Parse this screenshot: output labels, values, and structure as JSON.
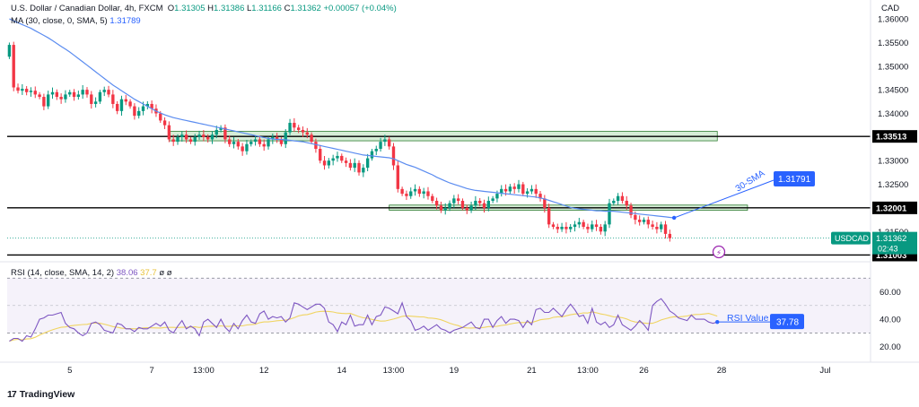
{
  "header": {
    "symbol_line": "U.S. Dollar / Canadian Dollar, 4h, FXCM",
    "open_label": "O",
    "open": "1.31305",
    "high_label": "H",
    "high": "1.31386",
    "low_label": "L",
    "low": "1.31166",
    "close_label": "C",
    "close": "1.31362",
    "change": "+0.00057 (+0.04%)",
    "ma_line": "MA (30, close, 0, SMA, 5)",
    "ma_value": "1.31789",
    "rsi_line": "RSI (14, close, SMA, 14, 2)",
    "rsi_value": "38.06",
    "rsi_ma_value": "37.7",
    "rsi_extra": "ø  ø"
  },
  "footer": {
    "brand": "TradingView",
    "logo": "17"
  },
  "colors": {
    "up": "#089981",
    "down": "#f23645",
    "ma": "#5b8cf0",
    "rsi": "#7e57c2",
    "rsi_ma": "#f0d460",
    "zone": "#a5d6a7"
  },
  "chart_data": {
    "type": "candlestick",
    "currency": "CAD",
    "symbol": "USDCAD",
    "ylim": [
      1.3086,
      1.364
    ],
    "price_ticks": [
      "1.36000",
      "1.35500",
      "1.35000",
      "1.34500",
      "1.34000",
      "1.33000",
      "1.32500",
      "1.31500"
    ],
    "x_ticks": [
      {
        "i": 14,
        "label": "5"
      },
      {
        "i": 33,
        "label": "7"
      },
      {
        "i": 45,
        "label": "13:00"
      },
      {
        "i": 59,
        "label": "12"
      },
      {
        "i": 77,
        "label": "14"
      },
      {
        "i": 89,
        "label": "13:00"
      },
      {
        "i": 103,
        "label": "19"
      },
      {
        "i": 121,
        "label": "21"
      },
      {
        "i": 134,
        "label": "13:00"
      },
      {
        "i": 147,
        "label": "26"
      },
      {
        "i": 165,
        "label": "28"
      },
      {
        "i": 189,
        "label": "Jul"
      }
    ],
    "n_slots": 200,
    "levels": [
      {
        "price": 1.33513,
        "label": "1.33513"
      },
      {
        "price": 1.32001,
        "label": "1.32001"
      },
      {
        "price": 1.31003,
        "label": "1.31003"
      }
    ],
    "zones": [
      {
        "from": 37,
        "to": 164,
        "low": 1.3342,
        "high": 1.3362
      },
      {
        "from": 88,
        "to": 171,
        "low": 1.3195,
        "high": 1.3206
      }
    ],
    "last_price": {
      "label": "USDCAD",
      "value": "1.31362",
      "countdown": "02:43"
    },
    "ma_badge": "1.31791",
    "ma_annotation": "30-SMA",
    "rsi_annotation": "RSI Value",
    "rsi_badge": "37.78",
    "rsi_ylim": [
      10,
      78
    ],
    "rsi_ticks": [
      "60.00",
      "40.00",
      "20.00"
    ],
    "rsi_bands": [
      70,
      30
    ],
    "closes": [
      1.3545,
      1.3455,
      1.3448,
      1.3452,
      1.3445,
      1.3448,
      1.344,
      1.3435,
      1.3415,
      1.344,
      1.3445,
      1.3435,
      1.343,
      1.344,
      1.3445,
      1.3435,
      1.344,
      1.345,
      1.344,
      1.342,
      1.3425,
      1.3445,
      1.345,
      1.344,
      1.342,
      1.3405,
      1.343,
      1.3425,
      1.3415,
      1.3395,
      1.3405,
      1.3415,
      1.342,
      1.341,
      1.34,
      1.3385,
      1.3375,
      1.3345,
      1.334,
      1.335,
      1.3355,
      1.3345,
      1.334,
      1.335,
      1.3355,
      1.335,
      1.3345,
      1.3355,
      1.3365,
      1.337,
      1.3345,
      1.3335,
      1.334,
      1.333,
      1.332,
      1.3335,
      1.334,
      1.3345,
      1.3335,
      1.333,
      1.3345,
      1.335,
      1.3345,
      1.3335,
      1.336,
      1.338,
      1.337,
      1.3365,
      1.336,
      1.3355,
      1.334,
      1.3325,
      1.33,
      1.329,
      1.33,
      1.3305,
      1.331,
      1.33,
      1.3295,
      1.3285,
      1.3295,
      1.3275,
      1.3285,
      1.3305,
      1.332,
      1.3325,
      1.334,
      1.3345,
      1.333,
      1.329,
      1.324,
      1.323,
      1.3225,
      1.3235,
      1.324,
      1.323,
      1.3235,
      1.3225,
      1.3215,
      1.3205,
      1.3195,
      1.32,
      1.321,
      1.322,
      1.3215,
      1.32,
      1.3195,
      1.3205,
      1.3215,
      1.321,
      1.32,
      1.3215,
      1.322,
      1.323,
      1.324,
      1.3235,
      1.3245,
      1.324,
      1.325,
      1.323,
      1.3235,
      1.324,
      1.323,
      1.322,
      1.32,
      1.3165,
      1.316,
      1.3155,
      1.316,
      1.3155,
      1.316,
      1.3165,
      1.317,
      1.316,
      1.3155,
      1.3165,
      1.316,
      1.315,
      1.3165,
      1.321,
      1.3215,
      1.3225,
      1.3215,
      1.3205,
      1.3185,
      1.3175,
      1.317,
      1.3175,
      1.3165,
      1.316,
      1.3155,
      1.3165,
      1.3145,
      1.3136
    ],
    "ma": [
      1.36,
      1.3596,
      1.3592,
      1.3588,
      1.3584,
      1.358,
      1.3575,
      1.357,
      1.3565,
      1.356,
      1.3554,
      1.3548,
      1.3542,
      1.3536,
      1.353,
      1.3523,
      1.3516,
      1.3509,
      1.3502,
      1.3495,
      1.3488,
      1.3481,
      1.3474,
      1.3467,
      1.346,
      1.3454,
      1.3448,
      1.3442,
      1.3436,
      1.343,
      1.3425,
      1.342,
      1.3415,
      1.341,
      1.3405,
      1.3401,
      1.3397,
      1.3394,
      1.3391,
      1.3389,
      1.3387,
      1.3385,
      1.3383,
      1.3381,
      1.3379,
      1.3377,
      1.3375,
      1.3373,
      1.3371,
      1.3369,
      1.3367,
      1.3365,
      1.3363,
      1.3361,
      1.3359,
      1.3357,
      1.3355,
      1.3353,
      1.3351,
      1.3349,
      1.3347,
      1.3346,
      1.3345,
      1.3345,
      1.3344,
      1.3343,
      1.3342,
      1.3341,
      1.334,
      1.3338,
      1.3336,
      1.3334,
      1.3332,
      1.333,
      1.3328,
      1.3326,
      1.3324,
      1.3322,
      1.332,
      1.3318,
      1.3316,
      1.3314,
      1.3312,
      1.3311,
      1.331,
      1.3309,
      1.3308,
      1.3307,
      1.3306,
      1.3304,
      1.33,
      1.3296,
      1.3292,
      1.3289,
      1.3286,
      1.3282,
      1.3278,
      1.3274,
      1.327,
      1.3265,
      1.3261,
      1.3257,
      1.3253,
      1.325,
      1.3247,
      1.3244,
      1.3241,
      1.3239,
      1.3237,
      1.3236,
      1.3235,
      1.3234,
      1.3233,
      1.3232,
      1.3231,
      1.323,
      1.3229,
      1.3228,
      1.3227,
      1.3226,
      1.3225,
      1.3224,
      1.3223,
      1.3221,
      1.3219,
      1.3216,
      1.3213,
      1.321,
      1.3207,
      1.3204,
      1.3201,
      1.3199,
      1.3198,
      1.3197,
      1.3196,
      1.3195,
      1.3194,
      1.3194,
      1.3193,
      1.3193,
      1.3193,
      1.3192,
      1.3191,
      1.319,
      1.3189,
      1.3188,
      1.3187,
      1.3186,
      1.3185,
      1.3184,
      1.3183,
      1.3182,
      1.3181,
      1.318,
      1.3179
    ],
    "rsi": [
      24,
      26,
      26,
      24,
      28,
      27,
      33,
      40,
      41,
      43,
      43,
      44,
      45,
      37,
      34,
      33,
      30,
      28,
      30,
      37,
      38,
      36,
      32,
      31,
      30,
      37,
      36,
      33,
      33,
      31,
      34,
      33,
      33,
      35,
      37,
      35,
      38,
      32,
      30,
      35,
      39,
      33,
      35,
      33,
      28,
      38,
      40,
      37,
      34,
      40,
      34,
      31,
      37,
      33,
      39,
      43,
      38,
      37,
      44,
      46,
      40,
      42,
      41,
      42,
      38,
      41,
      52,
      51,
      49,
      47,
      49,
      51,
      51,
      48,
      38,
      36,
      31,
      38,
      36,
      43,
      35,
      36,
      36,
      43,
      36,
      42,
      43,
      49,
      48,
      46,
      44,
      52,
      42,
      39,
      32,
      33,
      35,
      32,
      34,
      36,
      33,
      32,
      30,
      32,
      33,
      34,
      36,
      38,
      34,
      33,
      40,
      40,
      34,
      39,
      42,
      37,
      40,
      40,
      39,
      34,
      39,
      36,
      47,
      48,
      45,
      45,
      48,
      45,
      42,
      47,
      51,
      47,
      42,
      43,
      37,
      48,
      38,
      36,
      38,
      34,
      36,
      43,
      36,
      34,
      32,
      35,
      39,
      36,
      32,
      50,
      53,
      55,
      51,
      46,
      44,
      41,
      40,
      39,
      43,
      40,
      40,
      40,
      38,
      37,
      38
    ]
  }
}
